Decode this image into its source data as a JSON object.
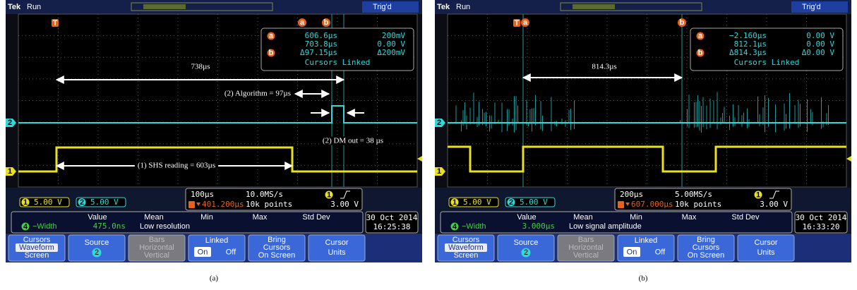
{
  "panels": [
    {
      "caption": "(a)",
      "header": {
        "brand": "Tek",
        "state": "Run",
        "trigger": "Trig'd"
      },
      "markers": {
        "trigger": "T",
        "cursor_a": "a",
        "cursor_b": "b",
        "ch2": "2",
        "ch1": "1"
      },
      "readout": {
        "row1": {
          "marker": "a",
          "time": "606.6µs",
          "volt": "200mV"
        },
        "row2": {
          "time": "703.8µs",
          "volt": "0.00 V"
        },
        "row3": {
          "marker": "b",
          "time": "Δ97.15µs",
          "volt": "Δ200mV"
        },
        "linked": "Cursors Linked"
      },
      "annotations": [
        "738µs",
        "(2) Algorithm = 97µs",
        "(2) DM out = 38 µs",
        "(1) SHS reading = 603µs"
      ],
      "channels": [
        {
          "id": "1",
          "scale": "5.00 V"
        },
        {
          "id": "2",
          "scale": "5.00 V"
        }
      ],
      "timebase": {
        "scale": "100µs",
        "rate": "10.0MS/s",
        "trigger_ch": "1",
        "level": "3.00 V",
        "position": "401.200µs",
        "points": "10k points"
      },
      "measurement": {
        "headers": [
          "Value",
          "Mean",
          "Min",
          "Max",
          "Std Dev"
        ],
        "channel": "4",
        "name": "−Width",
        "value": "475.0ns",
        "note": "Low resolution"
      },
      "datetime": {
        "date": "30 Oct  2014",
        "time": "16:25:38"
      },
      "menu": [
        [
          "Cursors",
          "Waveform",
          "Screen"
        ],
        [
          "Source",
          "2"
        ],
        [
          "Bars",
          "Horizontal",
          "Vertical"
        ],
        [
          "Linked",
          "On",
          "Off"
        ],
        [
          "Bring",
          "Cursors",
          "On Screen"
        ],
        [
          "Cursor",
          "Units"
        ]
      ]
    },
    {
      "caption": "(b)",
      "header": {
        "brand": "Tek",
        "state": "Run",
        "trigger": "Trig'd"
      },
      "markers": {
        "trigger": "T",
        "cursor_a": "a",
        "cursor_b": "b",
        "ch2": "2",
        "ch1": "1"
      },
      "readout": {
        "row1": {
          "marker": "a",
          "time": "−2.160µs",
          "volt": "0.00 V"
        },
        "row2": {
          "time": "812.1µs",
          "volt": "0.00 V"
        },
        "row3": {
          "marker": "b",
          "time": "Δ814.3µs",
          "volt": "Δ0.00 V"
        },
        "linked": "Cursors Linked"
      },
      "annotations": [
        "814.3µs"
      ],
      "channels": [
        {
          "id": "1",
          "scale": "5.00 V"
        },
        {
          "id": "2",
          "scale": "5.00 V"
        }
      ],
      "timebase": {
        "scale": "200µs",
        "rate": "5.00MS/s",
        "trigger_ch": "1",
        "level": "3.00 V",
        "position": "607.000µs",
        "points": "10k points"
      },
      "measurement": {
        "headers": [
          "Value",
          "Mean",
          "Min",
          "Max",
          "Std Dev"
        ],
        "channel": "4",
        "name": "−Width",
        "value": "3.000µs",
        "note": "Low signal amplitude"
      },
      "datetime": {
        "date": "30 Oct  2014",
        "time": "16:33:20"
      },
      "menu": [
        [
          "Cursors",
          "Waveform",
          "Screen"
        ],
        [
          "Source",
          "2"
        ],
        [
          "Bars",
          "Horizontal",
          "Vertical"
        ],
        [
          "Linked",
          "On",
          "Off"
        ],
        [
          "Bring",
          "Cursors",
          "On Screen"
        ],
        [
          "Cursor",
          "Units"
        ]
      ]
    }
  ]
}
